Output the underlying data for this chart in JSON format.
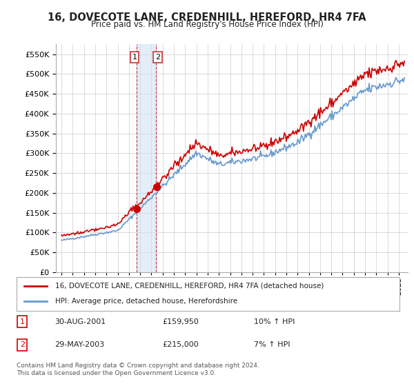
{
  "title": "16, DOVECOTE LANE, CREDENHILL, HEREFORD, HR4 7FA",
  "subtitle": "Price paid vs. HM Land Registry's House Price Index (HPI)",
  "legend_line1": "16, DOVECOTE LANE, CREDENHILL, HEREFORD, HR4 7FA (detached house)",
  "legend_line2": "HPI: Average price, detached house, Herefordshire",
  "transaction1_date": "30-AUG-2001",
  "transaction1_price": "£159,950",
  "transaction1_hpi": "10% ↑ HPI",
  "transaction2_date": "29-MAY-2003",
  "transaction2_price": "£215,000",
  "transaction2_hpi": "7% ↑ HPI",
  "footnote": "Contains HM Land Registry data © Crown copyright and database right 2024.\nThis data is licensed under the Open Government Licence v3.0.",
  "ylim": [
    0,
    575000
  ],
  "yticks": [
    0,
    50000,
    100000,
    150000,
    200000,
    250000,
    300000,
    350000,
    400000,
    450000,
    500000,
    550000
  ],
  "line_color_red": "#cc0000",
  "line_color_blue": "#6699cc",
  "fill_color_blue": "#cce0f5",
  "marker_color": "#cc0000",
  "bg_color": "#ffffff",
  "grid_color": "#cccccc",
  "transaction1_x": 2001.66,
  "transaction2_x": 2003.41,
  "start_year": 1995,
  "end_year": 2025,
  "n_per_year": 12
}
